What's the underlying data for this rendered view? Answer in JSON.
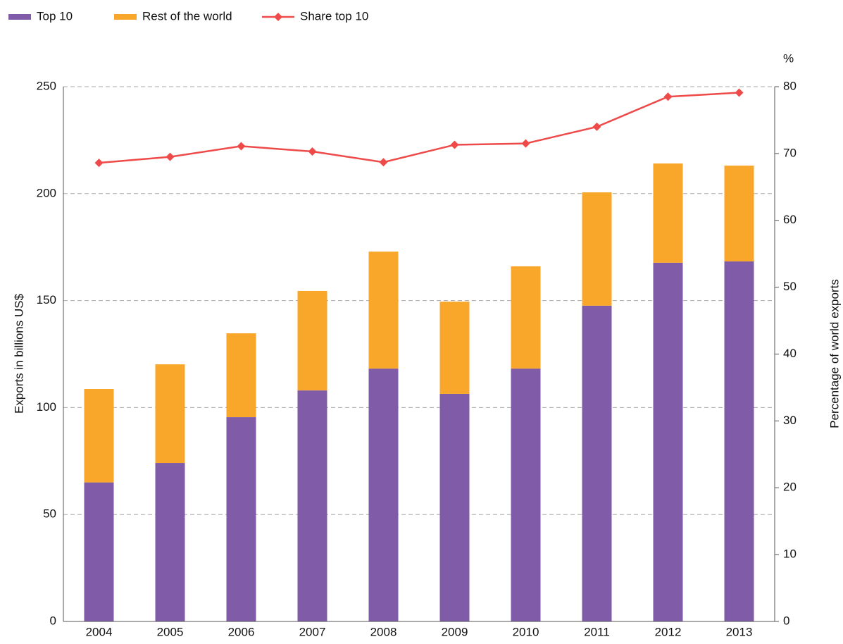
{
  "chart_data": {
    "type": "bar-line",
    "y_label": "Exports in billions US$",
    "y2_label": "Percentage of world exports",
    "y2_unit": "%",
    "categories": [
      "2004",
      "2005",
      "2006",
      "2007",
      "2008",
      "2009",
      "2010",
      "2011",
      "2012",
      "2013"
    ],
    "series": [
      {
        "name": "Top 10",
        "color": "#7f5ba8",
        "type": "bar",
        "values": [
          65,
          74.1,
          95.5,
          108,
          118.2,
          106.4,
          118.2,
          147.6,
          167.7,
          168.3
        ]
      },
      {
        "name": "Rest of the world",
        "color": "#f9a72b",
        "type": "bar",
        "values": [
          43.7,
          46.1,
          39.2,
          46.5,
          54.7,
          43.1,
          47.8,
          53,
          46.4,
          44.8
        ]
      },
      {
        "name": "Share top 10",
        "color": "#ef4a4a",
        "type": "line",
        "axis": "y2",
        "values": [
          68.6,
          69.5,
          71.1,
          70.3,
          68.7,
          71.3,
          71.5,
          74,
          78.5,
          79.1
        ]
      }
    ],
    "ylim": [
      0,
      250
    ],
    "yticks": [
      0,
      50,
      100,
      150,
      200,
      250
    ],
    "y2lim": [
      0,
      80
    ],
    "y2ticks": [
      0,
      10,
      20,
      30,
      40,
      50,
      60,
      70,
      80
    ],
    "grid": true,
    "legend": "top-left"
  }
}
